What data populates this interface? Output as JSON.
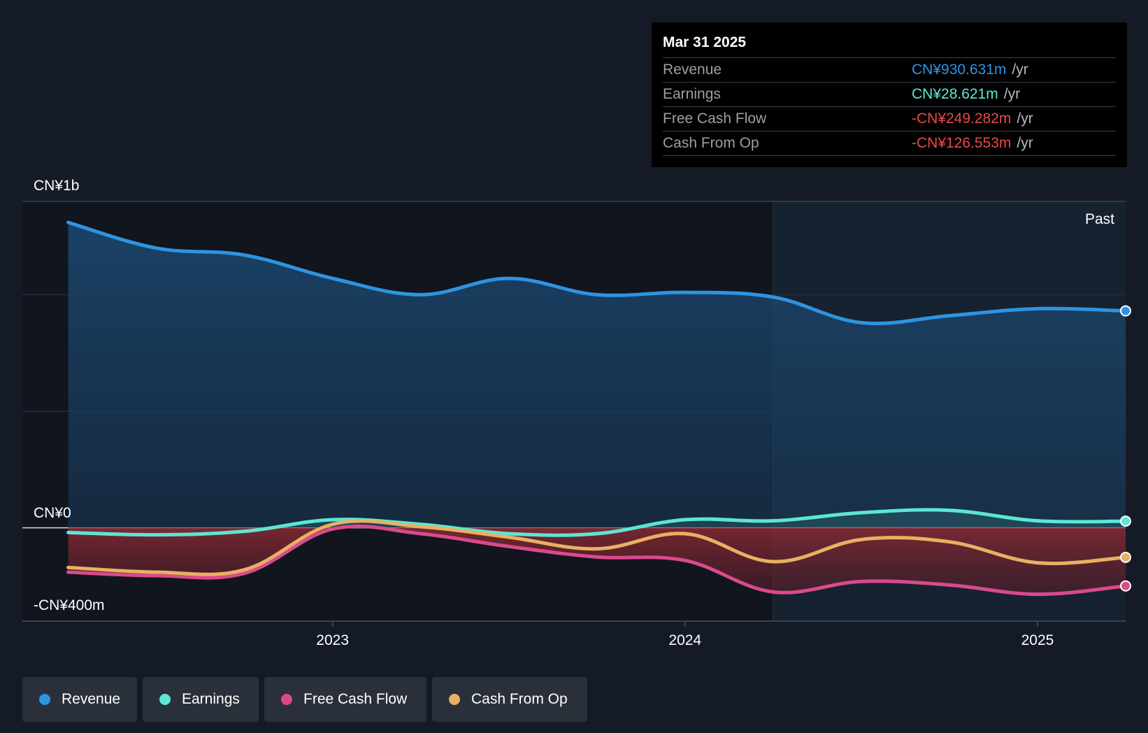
{
  "tooltip": {
    "date": "Mar 31 2025",
    "rows": [
      {
        "label": "Revenue",
        "value": "CN¥930.631m",
        "unit": "/yr",
        "color": "#2d94e3"
      },
      {
        "label": "Earnings",
        "value": "CN¥28.621m",
        "unit": "/yr",
        "color": "#5ce6d3"
      },
      {
        "label": "Free Cash Flow",
        "value": "-CN¥249.282m",
        "unit": "/yr",
        "color": "#e84a4a"
      },
      {
        "label": "Cash From Op",
        "value": "-CN¥126.553m",
        "unit": "/yr",
        "color": "#e84a4a"
      }
    ]
  },
  "legend": [
    {
      "label": "Revenue",
      "color": "#2d94e3"
    },
    {
      "label": "Earnings",
      "color": "#5ce6d3"
    },
    {
      "label": "Free Cash Flow",
      "color": "#d94a8c"
    },
    {
      "label": "Cash From Op",
      "color": "#e8b062"
    }
  ],
  "chart_data": {
    "type": "line",
    "y_tick_labels": [
      "CN¥1b",
      "CN¥0",
      "-CN¥400m"
    ],
    "x_tick_labels": [
      "2023",
      "2024",
      "2025"
    ],
    "past_label": "Past",
    "ylim": [
      -400,
      1400
    ],
    "xlim": [
      2022.12,
      2025.25
    ],
    "past_start": 2024.25,
    "series": [
      {
        "name": "Revenue",
        "color": "#2d94e3",
        "x": [
          2022.25,
          2022.5,
          2022.75,
          2023.0,
          2023.25,
          2023.5,
          2023.75,
          2024.0,
          2024.25,
          2024.5,
          2024.75,
          2025.0,
          2025.25
        ],
        "y": [
          1310,
          1200,
          1170,
          1070,
          1000,
          1070,
          1000,
          1010,
          990,
          880,
          910,
          940,
          930.631
        ]
      },
      {
        "name": "Earnings",
        "color": "#5ce6d3",
        "x": [
          2022.25,
          2022.5,
          2022.75,
          2023.0,
          2023.25,
          2023.5,
          2023.75,
          2024.0,
          2024.25,
          2024.5,
          2024.75,
          2025.0,
          2025.25
        ],
        "y": [
          -20,
          -30,
          -15,
          35,
          15,
          -25,
          -25,
          35,
          30,
          65,
          75,
          30,
          28.621
        ]
      },
      {
        "name": "Free Cash Flow",
        "color": "#d94a8c",
        "x": [
          2022.25,
          2022.5,
          2022.75,
          2023.0,
          2023.25,
          2023.5,
          2023.75,
          2024.0,
          2024.25,
          2024.5,
          2024.75,
          2025.0,
          2025.25
        ],
        "y": [
          -190,
          -205,
          -195,
          -5,
          -25,
          -80,
          -125,
          -140,
          -275,
          -230,
          -245,
          -285,
          -249.282
        ]
      },
      {
        "name": "Cash From Op",
        "color": "#e8b062",
        "x": [
          2022.25,
          2022.5,
          2022.75,
          2023.0,
          2023.25,
          2023.5,
          2023.75,
          2024.0,
          2024.25,
          2024.5,
          2024.75,
          2025.0,
          2025.25
        ],
        "y": [
          -170,
          -190,
          -180,
          15,
          5,
          -40,
          -90,
          -25,
          -145,
          -50,
          -60,
          -150,
          -126.553
        ]
      }
    ]
  }
}
